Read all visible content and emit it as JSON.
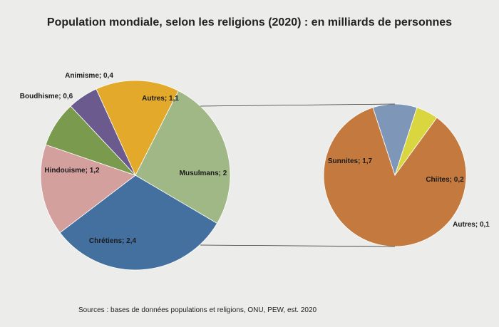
{
  "chart_data": {
    "type": "pie",
    "title": "Population mondiale, selon les religions (2020) : en milliards de personnes",
    "main_pie": [
      {
        "label": "Chrétiens",
        "value": 2.4,
        "display": "2,4",
        "color": "#44709f"
      },
      {
        "label": "Hindouisme",
        "value": 1.2,
        "display": "1,2",
        "color": "#d4a09e"
      },
      {
        "label": "Boudhisme",
        "value": 0.6,
        "display": "0,6",
        "color": "#7a9a4e"
      },
      {
        "label": "Animisme",
        "value": 0.4,
        "display": "0,4",
        "color": "#6b5a8e"
      },
      {
        "label": "Autres",
        "value": 1.1,
        "display": "1,1",
        "color": "#e3a92b"
      },
      {
        "label": "Musulmans",
        "value": 2,
        "display": "2",
        "color": "#9fb886"
      }
    ],
    "sub_pie_of": "Musulmans",
    "sub_pie": [
      {
        "label": "Sunnites",
        "value": 1.7,
        "display": "1,7",
        "color": "#c47a3f"
      },
      {
        "label": "Chiites",
        "value": 0.2,
        "display": "0,2",
        "color": "#7e97b8"
      },
      {
        "label": "Autres",
        "value": 0.1,
        "display": "0,1",
        "color": "#d9d640"
      }
    ]
  },
  "source": "Sources : bases de données populations et religions, ONU, PEW, est. 2020"
}
